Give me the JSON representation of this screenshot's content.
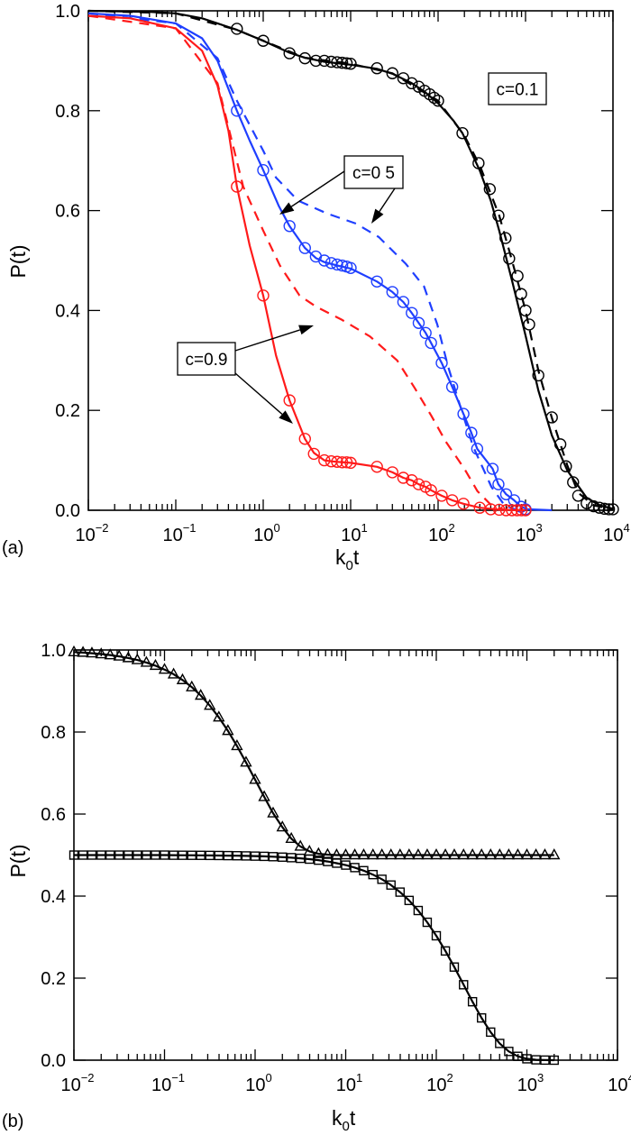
{
  "chart_data": [
    {
      "panel_label": "(a)",
      "type": "line",
      "xlabel": {
        "main": "k",
        "sub": "0",
        "tail": "t"
      },
      "ylabel": "P(t)",
      "xscale": "log",
      "xlim": [
        0.01,
        10000
      ],
      "ylim": [
        0,
        1.0
      ],
      "x_ticks": [
        {
          "base": "10",
          "exp": "-2"
        },
        {
          "base": "10",
          "exp": "-1"
        },
        {
          "base": "10",
          "exp": "0"
        },
        {
          "base": "10",
          "exp": "1"
        },
        {
          "base": "10",
          "exp": "2"
        },
        {
          "base": "10",
          "exp": "3"
        },
        {
          "base": "10",
          "exp": "4"
        }
      ],
      "y_ticks": [
        "0.0",
        "0.2",
        "0.4",
        "0.6",
        "0.8",
        "1.0"
      ],
      "grid": false,
      "annotations": [
        {
          "text": "c=0.1",
          "color": "#000000"
        },
        {
          "text": "c=0 5",
          "color": "#000000"
        },
        {
          "text": "c=0.9",
          "color": "#000000"
        }
      ],
      "series": [
        {
          "id": "c01-solid",
          "color": "#000000",
          "style": "solid",
          "x": [
            0.01,
            0.05,
            0.1,
            0.2,
            0.3,
            0.5,
            1,
            2,
            3,
            5,
            10,
            20,
            30,
            50,
            70,
            100,
            150,
            190,
            300,
            400,
            500,
            700,
            1000,
            1400,
            2000,
            3000,
            3600,
            5000,
            7000,
            10000
          ],
          "y": [
            1.0,
            0.998,
            0.995,
            0.985,
            0.975,
            0.962,
            0.94,
            0.916,
            0.906,
            0.898,
            0.892,
            0.884,
            0.874,
            0.855,
            0.838,
            0.815,
            0.78,
            0.755,
            0.68,
            0.62,
            0.56,
            0.46,
            0.35,
            0.24,
            0.15,
            0.08,
            0.06,
            0.025,
            0.01,
            0.003
          ]
        },
        {
          "id": "c01-dashed",
          "color": "#000000",
          "style": "dashed",
          "x": [
            0.01,
            0.1,
            0.5,
            1,
            3,
            10,
            30,
            100,
            200,
            300,
            500,
            700,
            1000,
            1400,
            2000,
            3000,
            4000,
            6000,
            10000
          ],
          "y": [
            1.0,
            0.995,
            0.962,
            0.94,
            0.906,
            0.894,
            0.875,
            0.82,
            0.75,
            0.69,
            0.59,
            0.5,
            0.4,
            0.28,
            0.185,
            0.09,
            0.035,
            0.01,
            0.002
          ]
        },
        {
          "id": "c01-circles",
          "color": "#000000",
          "style": "circles",
          "x": [
            0.5,
            1,
            2,
            3,
            4,
            5,
            6,
            7,
            8,
            9,
            10,
            20,
            30,
            40,
            50,
            60,
            70,
            80,
            90,
            100,
            190,
            290,
            390,
            490,
            590,
            650,
            810,
            890,
            1000,
            1100,
            1400,
            2000,
            2500,
            2900,
            3500,
            4000,
            5000,
            6000,
            7000,
            8000,
            9000,
            10000
          ],
          "y": [
            0.964,
            0.94,
            0.915,
            0.905,
            0.9,
            0.9,
            0.898,
            0.897,
            0.896,
            0.895,
            0.894,
            0.885,
            0.875,
            0.865,
            0.855,
            0.848,
            0.84,
            0.833,
            0.826,
            0.82,
            0.755,
            0.695,
            0.643,
            0.59,
            0.545,
            0.504,
            0.469,
            0.433,
            0.4,
            0.372,
            0.27,
            0.186,
            0.132,
            0.088,
            0.056,
            0.029,
            0.014,
            0.008,
            0.005,
            0.003,
            0.002,
            0.002
          ]
        },
        {
          "id": "c05-solid",
          "color": "#1f3fff",
          "style": "solid",
          "x": [
            0.01,
            0.03,
            0.1,
            0.2,
            0.3,
            0.5,
            0.7,
            1,
            1.5,
            2,
            3,
            4,
            5,
            7,
            10,
            20,
            30,
            40,
            50,
            60,
            72,
            83,
            110,
            145,
            195,
            240,
            280,
            420,
            490,
            600,
            740,
            890,
            1050,
            2000
          ],
          "y": [
            0.995,
            0.99,
            0.975,
            0.945,
            0.9,
            0.8,
            0.74,
            0.681,
            0.61,
            0.569,
            0.525,
            0.505,
            0.497,
            0.49,
            0.484,
            0.458,
            0.437,
            0.417,
            0.395,
            0.375,
            0.355,
            0.335,
            0.295,
            0.247,
            0.193,
            0.155,
            0.123,
            0.083,
            0.052,
            0.032,
            0.02,
            0.007,
            0.002,
            0.0
          ]
        },
        {
          "id": "c05-dashed",
          "color": "#1f3fff",
          "style": "dashed",
          "x": [
            0.01,
            0.1,
            0.3,
            0.5,
            1,
            1.4,
            2.5,
            5.4,
            11.5,
            21,
            43,
            69,
            98,
            129,
            178,
            251,
            407,
            575,
            800
          ],
          "y": [
            0.995,
            0.975,
            0.905,
            0.82,
            0.72,
            0.666,
            0.62,
            0.594,
            0.574,
            0.547,
            0.493,
            0.448,
            0.372,
            0.29,
            0.21,
            0.128,
            0.047,
            0.01,
            0.0
          ]
        },
        {
          "id": "c05-circles",
          "color": "#1f3fff",
          "style": "circles",
          "x": [
            0.5,
            1,
            2,
            3,
            4,
            5,
            6,
            7,
            8,
            9,
            10,
            20,
            30,
            40,
            50,
            60,
            72,
            83,
            110,
            145,
            195,
            240,
            280,
            420,
            490,
            600,
            740,
            890,
            1000
          ],
          "y": [
            0.8,
            0.681,
            0.569,
            0.525,
            0.508,
            0.5,
            0.495,
            0.492,
            0.49,
            0.488,
            0.485,
            0.458,
            0.437,
            0.417,
            0.395,
            0.375,
            0.355,
            0.335,
            0.295,
            0.247,
            0.193,
            0.155,
            0.123,
            0.083,
            0.052,
            0.032,
            0.02,
            0.007,
            0.002
          ]
        },
        {
          "id": "c09-solid",
          "color": "#ff1a1a",
          "style": "solid",
          "x": [
            0.01,
            0.03,
            0.1,
            0.2,
            0.3,
            0.4,
            0.5,
            0.7,
            1,
            1.4,
            2,
            3,
            3.8,
            5,
            6,
            7,
            10,
            20,
            30,
            40,
            50,
            60,
            72,
            83,
            110,
            145,
            195,
            300,
            500,
            1000
          ],
          "y": [
            0.99,
            0.985,
            0.965,
            0.92,
            0.85,
            0.76,
            0.648,
            0.53,
            0.43,
            0.31,
            0.22,
            0.143,
            0.115,
            0.1,
            0.098,
            0.097,
            0.095,
            0.087,
            0.076,
            0.065,
            0.06,
            0.052,
            0.047,
            0.04,
            0.029,
            0.02,
            0.013,
            0.005,
            0.001,
            0.0
          ]
        },
        {
          "id": "c09-dashed",
          "color": "#ff1a1a",
          "style": "dashed",
          "x": [
            0.01,
            0.1,
            0.3,
            0.59,
            1,
            1.55,
            2.6,
            4,
            8,
            16.6,
            34,
            54,
            83,
            123,
            200,
            282,
            407,
            600
          ],
          "y": [
            0.99,
            0.965,
            0.855,
            0.648,
            0.56,
            0.49,
            0.43,
            0.408,
            0.381,
            0.348,
            0.3,
            0.245,
            0.19,
            0.137,
            0.083,
            0.038,
            0.01,
            0.0
          ]
        },
        {
          "id": "c09-circles",
          "color": "#ff1a1a",
          "style": "circles",
          "x": [
            0.5,
            1,
            2,
            3,
            3.8,
            5,
            6,
            7,
            8,
            9,
            10,
            20,
            30,
            40,
            50,
            60,
            72,
            83,
            110,
            145,
            195,
            300,
            400,
            500,
            600,
            700,
            800,
            900,
            1000
          ],
          "y": [
            0.648,
            0.43,
            0.22,
            0.143,
            0.113,
            0.1,
            0.098,
            0.097,
            0.096,
            0.096,
            0.095,
            0.087,
            0.076,
            0.065,
            0.06,
            0.052,
            0.047,
            0.04,
            0.029,
            0.02,
            0.013,
            0.005,
            0.002,
            0.001,
            0.0,
            0.0,
            0.0,
            0.0,
            0.0
          ]
        }
      ]
    },
    {
      "panel_label": "(b)",
      "type": "line",
      "xlabel": {
        "main": "k",
        "sub": "0",
        "tail": "t"
      },
      "ylabel": "P(t)",
      "xscale": "log",
      "xlim": [
        0.01,
        10000
      ],
      "ylim": [
        0,
        1.0
      ],
      "x_ticks": [
        {
          "base": "10",
          "exp": "-2"
        },
        {
          "base": "10",
          "exp": "-1"
        },
        {
          "base": "10",
          "exp": "0"
        },
        {
          "base": "10",
          "exp": "1"
        },
        {
          "base": "10",
          "exp": "2"
        },
        {
          "base": "10",
          "exp": "3"
        },
        {
          "base": "10",
          "exp": "4"
        }
      ],
      "y_ticks": [
        "0.0",
        "0.2",
        "0.4",
        "0.6",
        "0.8",
        "1.0"
      ],
      "grid": false,
      "annotations": [],
      "x_shared": [
        0.01,
        0.0126,
        0.0158,
        0.02,
        0.0251,
        0.0316,
        0.0398,
        0.0501,
        0.0631,
        0.0794,
        0.1,
        0.126,
        0.158,
        0.2,
        0.251,
        0.316,
        0.398,
        0.501,
        0.631,
        0.794,
        1,
        1.26,
        1.58,
        2,
        2.51,
        3.16,
        3.98,
        5.01,
        6.31,
        7.94,
        10,
        12.6,
        15.8,
        20,
        25.1,
        31.6,
        39.8,
        50.1,
        63.1,
        79.4,
        100,
        126,
        158,
        200,
        251,
        316,
        398,
        501,
        631,
        794,
        1000,
        1260,
        1580,
        2000
      ],
      "series": [
        {
          "id": "triangles",
          "color": "#000000",
          "style": "triangles+line",
          "y": [
            0.995,
            0.9937,
            0.9921,
            0.99,
            0.9876,
            0.9844,
            0.9805,
            0.9756,
            0.9694,
            0.9618,
            0.9524,
            0.9408,
            0.9269,
            0.9094,
            0.889,
            0.8645,
            0.8358,
            0.803,
            0.766,
            0.726,
            0.684,
            0.642,
            0.602,
            0.568,
            0.54,
            0.521,
            0.509,
            0.503,
            0.501,
            0.5,
            0.5,
            0.5,
            0.5,
            0.5,
            0.5,
            0.5,
            0.5,
            0.5,
            0.5,
            0.5,
            0.5,
            0.5,
            0.5,
            0.5,
            0.5,
            0.5,
            0.5,
            0.5,
            0.5,
            0.5,
            0.5,
            0.5,
            0.5,
            0.5
          ]
        },
        {
          "id": "squares",
          "color": "#000000",
          "style": "squares+line",
          "y": [
            0.5,
            0.5,
            0.5,
            0.5,
            0.5,
            0.5,
            0.5,
            0.5,
            0.5,
            0.5,
            0.5,
            0.4997,
            0.4996,
            0.4995,
            0.4994,
            0.4992,
            0.499,
            0.4987,
            0.4984,
            0.498,
            0.4975,
            0.4969,
            0.4961,
            0.495,
            0.4937,
            0.4921,
            0.4901,
            0.4876,
            0.4843,
            0.4803,
            0.4756,
            0.4695,
            0.462,
            0.4524,
            0.441,
            0.427,
            0.4097,
            0.3894,
            0.3648,
            0.3362,
            0.3033,
            0.2663,
            0.227,
            0.1839,
            0.1425,
            0.103,
            0.0684,
            0.0408,
            0.0213,
            0.0094,
            0.0034,
            0.0009,
            0.0002,
            0.0
          ]
        }
      ]
    }
  ]
}
